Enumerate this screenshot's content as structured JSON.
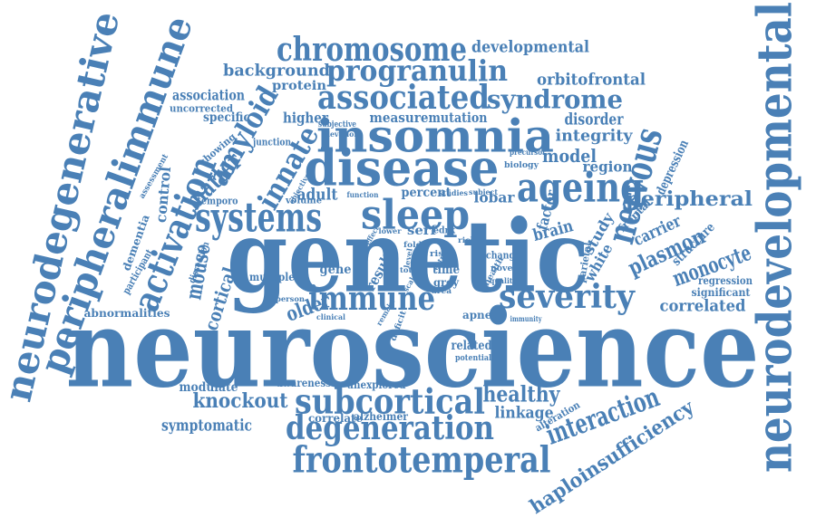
{
  "words": [
    "neuroscience",
    "genetic",
    "neurodevelopmental",
    "neurodegenerative",
    "peripheralimmune",
    "activation",
    "amyloid",
    "matter",
    "innate",
    "mouse",
    "cortical",
    "chromosome",
    "developmental",
    "background",
    "progranulin",
    "orbitofrontal",
    "protein",
    "association",
    "associated",
    "syndrome",
    "uncorrected",
    "specific",
    "higher",
    "subjective",
    "measure",
    "mutation",
    "disorder",
    "insomnia",
    "integrity",
    "elevation",
    "showing",
    "junction",
    "disease",
    "model",
    "region",
    "depression",
    "precursor",
    "biology",
    "ageing",
    "nervous",
    "peripheral",
    "assessment",
    "control",
    "temporo",
    "volume",
    "adult",
    "percent",
    "lobar",
    "factor",
    "systems",
    "sleep",
    "brain",
    "study",
    "carrier",
    "plasmon",
    "frontal",
    "structure",
    "monocyte",
    "white",
    "parietal",
    "serf",
    "edrk",
    "gene",
    "multiple",
    "result",
    "time",
    "grey",
    "regression",
    "significant",
    "correlated",
    "severity",
    "immune",
    "older",
    "apnea",
    "immunity",
    "deficit",
    "clinical",
    "abnormalities",
    "related",
    "potential",
    "modulate",
    "awareness",
    "unexplored",
    "knockout",
    "subcortical",
    "healthy",
    "interaction",
    "alteration",
    "symptomatic",
    "correlate",
    "alzheimer",
    "linkage",
    "degeneration",
    "haploinsufficiency",
    "frontotemperal",
    "dementia",
    "participant",
    "dissection",
    "risk",
    "change",
    "novel",
    "health",
    "area",
    "extra",
    "person",
    "remain",
    "studies",
    "subject",
    "function",
    "objective",
    "total",
    "level",
    "quality",
    "lower",
    "effect",
    "rich",
    "fold",
    "scale"
  ]
}
